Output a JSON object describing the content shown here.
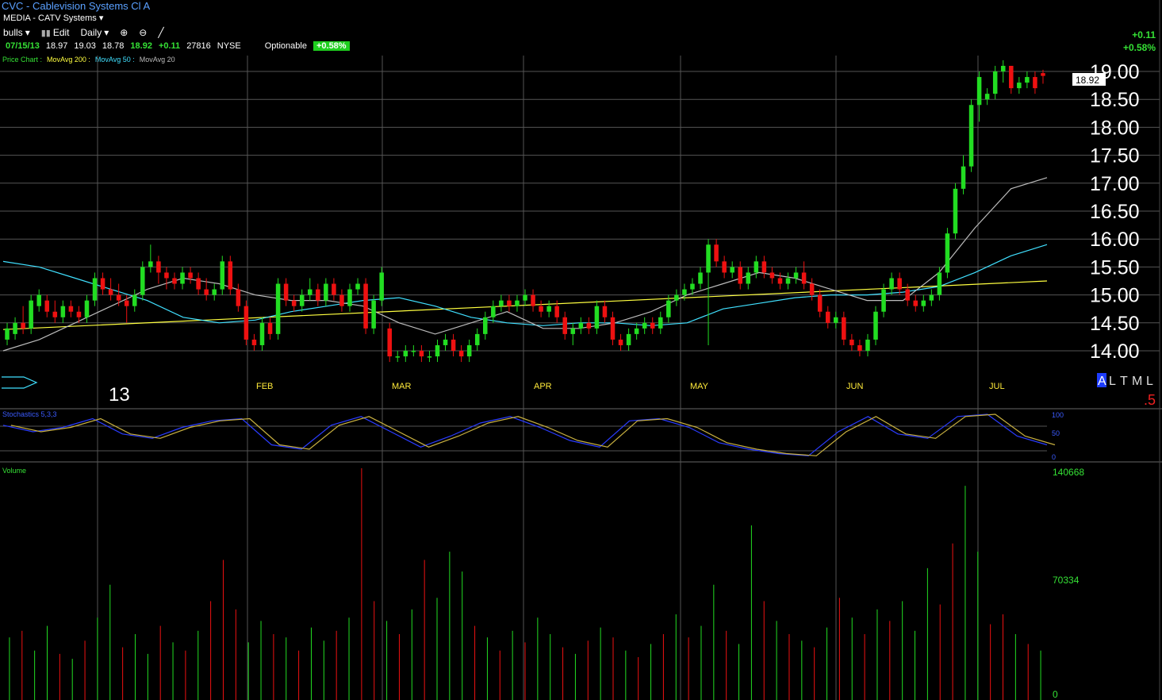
{
  "header": {
    "title": "CVC - Cablevision Systems Cl A",
    "industry": "MEDIA - CATV Systems"
  },
  "toolbar": {
    "watchlist": "bulls",
    "edit_label": "Edit",
    "period": "Daily"
  },
  "quote": {
    "date": "07/15/13",
    "open": "18.97",
    "high": "19.03",
    "low": "18.78",
    "last": "18.92",
    "change": "+0.11",
    "volume": "27816",
    "exchange": "NYSE",
    "optionable": "Optionable",
    "pct_badge": "+0.58%"
  },
  "right_summary": {
    "change": "+0.11",
    "pct": "+0.58%"
  },
  "legend": {
    "price_chart": "Price Chart :",
    "ma200": "MovAvg 200 :",
    "ma50": "MovAvg 50 :",
    "ma20": "MovAvg 20",
    "color_price": "#35e135",
    "color_ma200": "#ffff40",
    "color_ma50": "#40e0ff",
    "color_ma20": "#bbbbbb"
  },
  "year_label": "13",
  "scale_toggles": [
    "A",
    "L",
    "T",
    "M",
    "L"
  ],
  "red_marker": ".5",
  "stochastics_label": "Stochastics 5,3,3",
  "stochastics_ticks": [
    "100",
    "50",
    "0"
  ],
  "volume_label": "Volume",
  "volume_ticks": [
    "140668",
    "70334",
    "0"
  ],
  "price_flag": "18.92",
  "colors": {
    "up": "#22dd22",
    "down": "#ee1111",
    "grid": "#555555",
    "bg": "#000000"
  },
  "chart_data": {
    "type": "candlestick",
    "ylim": [
      13.7,
      19.2
    ],
    "y_ticks": [
      "19.00",
      "18.50",
      "18.00",
      "17.50",
      "17.00",
      "16.50",
      "16.00",
      "15.50",
      "15.00",
      "14.50",
      "14.00"
    ],
    "x_months": [
      "FEB",
      "MAR",
      "APR",
      "MAY",
      "JUN",
      "JUL"
    ],
    "candles": [
      {
        "o": 14.2,
        "h": 14.5,
        "l": 14.1,
        "c": 14.4
      },
      {
        "o": 14.3,
        "h": 14.6,
        "l": 14.2,
        "c": 14.5
      },
      {
        "o": 14.5,
        "h": 14.8,
        "l": 14.3,
        "c": 14.4
      },
      {
        "o": 14.4,
        "h": 15.0,
        "l": 14.3,
        "c": 14.9
      },
      {
        "o": 14.8,
        "h": 15.1,
        "l": 14.7,
        "c": 15.0
      },
      {
        "o": 14.9,
        "h": 15.0,
        "l": 14.6,
        "c": 14.7
      },
      {
        "o": 14.7,
        "h": 14.9,
        "l": 14.5,
        "c": 14.6
      },
      {
        "o": 14.6,
        "h": 14.9,
        "l": 14.5,
        "c": 14.8
      },
      {
        "o": 14.8,
        "h": 14.9,
        "l": 14.6,
        "c": 14.7
      },
      {
        "o": 14.7,
        "h": 14.8,
        "l": 14.5,
        "c": 14.6
      },
      {
        "o": 14.6,
        "h": 15.0,
        "l": 14.5,
        "c": 14.9
      },
      {
        "o": 14.9,
        "h": 15.4,
        "l": 14.8,
        "c": 15.3
      },
      {
        "o": 15.3,
        "h": 15.4,
        "l": 15.0,
        "c": 15.1
      },
      {
        "o": 15.1,
        "h": 15.3,
        "l": 14.9,
        "c": 15.0
      },
      {
        "o": 15.0,
        "h": 15.2,
        "l": 14.8,
        "c": 14.9
      },
      {
        "o": 14.9,
        "h": 15.0,
        "l": 14.5,
        "c": 14.8
      },
      {
        "o": 14.8,
        "h": 15.1,
        "l": 14.7,
        "c": 15.0
      },
      {
        "o": 15.0,
        "h": 15.6,
        "l": 14.9,
        "c": 15.5
      },
      {
        "o": 15.5,
        "h": 15.9,
        "l": 15.4,
        "c": 15.6
      },
      {
        "o": 15.6,
        "h": 15.7,
        "l": 15.2,
        "c": 15.4
      },
      {
        "o": 15.4,
        "h": 15.5,
        "l": 15.1,
        "c": 15.3
      },
      {
        "o": 15.3,
        "h": 15.4,
        "l": 15.1,
        "c": 15.2
      },
      {
        "o": 15.2,
        "h": 15.5,
        "l": 15.1,
        "c": 15.4
      },
      {
        "o": 15.4,
        "h": 15.5,
        "l": 15.2,
        "c": 15.3
      },
      {
        "o": 15.3,
        "h": 15.4,
        "l": 15.0,
        "c": 15.1
      },
      {
        "o": 15.1,
        "h": 15.3,
        "l": 14.9,
        "c": 15.0
      },
      {
        "o": 15.0,
        "h": 15.2,
        "l": 14.9,
        "c": 15.1
      },
      {
        "o": 15.1,
        "h": 15.7,
        "l": 15.0,
        "c": 15.6
      },
      {
        "o": 15.6,
        "h": 15.7,
        "l": 15.0,
        "c": 15.1
      },
      {
        "o": 15.1,
        "h": 15.2,
        "l": 14.7,
        "c": 14.8
      },
      {
        "o": 14.8,
        "h": 14.9,
        "l": 14.1,
        "c": 14.2
      },
      {
        "o": 14.2,
        "h": 14.3,
        "l": 14.0,
        "c": 14.1
      },
      {
        "o": 14.1,
        "h": 14.6,
        "l": 14.0,
        "c": 14.5
      },
      {
        "o": 14.5,
        "h": 14.6,
        "l": 14.2,
        "c": 14.3
      },
      {
        "o": 14.3,
        "h": 15.3,
        "l": 14.2,
        "c": 15.2
      },
      {
        "o": 15.2,
        "h": 15.3,
        "l": 14.8,
        "c": 14.9
      },
      {
        "o": 14.9,
        "h": 15.0,
        "l": 14.7,
        "c": 14.8
      },
      {
        "o": 14.8,
        "h": 15.1,
        "l": 14.7,
        "c": 15.0
      },
      {
        "o": 15.0,
        "h": 15.3,
        "l": 14.9,
        "c": 15.1
      },
      {
        "o": 15.1,
        "h": 15.2,
        "l": 14.8,
        "c": 14.9
      },
      {
        "o": 14.9,
        "h": 15.3,
        "l": 14.8,
        "c": 15.2
      },
      {
        "o": 15.2,
        "h": 15.3,
        "l": 14.9,
        "c": 15.0
      },
      {
        "o": 15.0,
        "h": 15.1,
        "l": 14.7,
        "c": 14.8
      },
      {
        "o": 14.8,
        "h": 15.2,
        "l": 14.7,
        "c": 15.1
      },
      {
        "o": 15.1,
        "h": 15.3,
        "l": 15.0,
        "c": 15.2
      },
      {
        "o": 15.2,
        "h": 15.3,
        "l": 14.3,
        "c": 14.4
      },
      {
        "o": 14.4,
        "h": 15.0,
        "l": 14.3,
        "c": 14.9
      },
      {
        "o": 14.9,
        "h": 15.5,
        "l": 14.8,
        "c": 15.4
      },
      {
        "o": 14.4,
        "h": 14.5,
        "l": 13.8,
        "c": 13.9
      },
      {
        "o": 13.9,
        "h": 14.0,
        "l": 13.8,
        "c": 13.9
      },
      {
        "o": 13.9,
        "h": 14.1,
        "l": 13.8,
        "c": 14.0
      },
      {
        "o": 14.0,
        "h": 14.1,
        "l": 13.9,
        "c": 14.0
      },
      {
        "o": 14.0,
        "h": 14.1,
        "l": 13.8,
        "c": 13.9
      },
      {
        "o": 13.9,
        "h": 14.0,
        "l": 13.8,
        "c": 13.9
      },
      {
        "o": 13.9,
        "h": 14.2,
        "l": 13.8,
        "c": 14.1
      },
      {
        "o": 14.1,
        "h": 14.3,
        "l": 14.0,
        "c": 14.2
      },
      {
        "o": 14.2,
        "h": 14.3,
        "l": 13.9,
        "c": 14.0
      },
      {
        "o": 14.0,
        "h": 14.1,
        "l": 13.8,
        "c": 13.9
      },
      {
        "o": 13.9,
        "h": 14.2,
        "l": 13.8,
        "c": 14.1
      },
      {
        "o": 14.1,
        "h": 14.4,
        "l": 14.0,
        "c": 14.3
      },
      {
        "o": 14.3,
        "h": 14.7,
        "l": 14.2,
        "c": 14.6
      },
      {
        "o": 14.6,
        "h": 14.9,
        "l": 14.5,
        "c": 14.8
      },
      {
        "o": 14.8,
        "h": 15.0,
        "l": 14.7,
        "c": 14.9
      },
      {
        "o": 14.9,
        "h": 15.0,
        "l": 14.7,
        "c": 14.8
      },
      {
        "o": 14.8,
        "h": 15.0,
        "l": 14.7,
        "c": 14.9
      },
      {
        "o": 14.9,
        "h": 15.1,
        "l": 14.8,
        "c": 15.0
      },
      {
        "o": 15.0,
        "h": 15.1,
        "l": 14.7,
        "c": 14.8
      },
      {
        "o": 14.8,
        "h": 14.9,
        "l": 14.6,
        "c": 14.7
      },
      {
        "o": 14.7,
        "h": 14.9,
        "l": 14.6,
        "c": 14.8
      },
      {
        "o": 14.8,
        "h": 14.9,
        "l": 14.5,
        "c": 14.6
      },
      {
        "o": 14.6,
        "h": 14.7,
        "l": 14.2,
        "c": 14.3
      },
      {
        "o": 14.3,
        "h": 14.5,
        "l": 14.1,
        "c": 14.4
      },
      {
        "o": 14.4,
        "h": 14.6,
        "l": 14.3,
        "c": 14.5
      },
      {
        "o": 14.5,
        "h": 14.6,
        "l": 14.3,
        "c": 14.4
      },
      {
        "o": 14.4,
        "h": 14.9,
        "l": 14.3,
        "c": 14.8
      },
      {
        "o": 14.8,
        "h": 14.9,
        "l": 14.5,
        "c": 14.6
      },
      {
        "o": 14.6,
        "h": 14.7,
        "l": 14.1,
        "c": 14.2
      },
      {
        "o": 14.2,
        "h": 14.3,
        "l": 14.0,
        "c": 14.1
      },
      {
        "o": 14.1,
        "h": 14.4,
        "l": 14.0,
        "c": 14.3
      },
      {
        "o": 14.3,
        "h": 14.5,
        "l": 14.2,
        "c": 14.4
      },
      {
        "o": 14.4,
        "h": 14.6,
        "l": 14.3,
        "c": 14.5
      },
      {
        "o": 14.5,
        "h": 14.6,
        "l": 14.3,
        "c": 14.4
      },
      {
        "o": 14.4,
        "h": 14.7,
        "l": 14.3,
        "c": 14.6
      },
      {
        "o": 14.6,
        "h": 15.0,
        "l": 14.5,
        "c": 14.9
      },
      {
        "o": 14.9,
        "h": 15.1,
        "l": 14.8,
        "c": 15.0
      },
      {
        "o": 15.0,
        "h": 15.2,
        "l": 14.9,
        "c": 15.1
      },
      {
        "o": 15.1,
        "h": 15.3,
        "l": 15.0,
        "c": 15.2
      },
      {
        "o": 15.2,
        "h": 15.5,
        "l": 15.1,
        "c": 15.4
      },
      {
        "o": 15.4,
        "h": 16.0,
        "l": 14.1,
        "c": 15.9
      },
      {
        "o": 15.9,
        "h": 16.0,
        "l": 15.5,
        "c": 15.6
      },
      {
        "o": 15.6,
        "h": 15.7,
        "l": 15.3,
        "c": 15.4
      },
      {
        "o": 15.4,
        "h": 15.6,
        "l": 15.3,
        "c": 15.5
      },
      {
        "o": 15.5,
        "h": 15.6,
        "l": 15.1,
        "c": 15.2
      },
      {
        "o": 15.2,
        "h": 15.5,
        "l": 15.1,
        "c": 15.4
      },
      {
        "o": 15.4,
        "h": 15.7,
        "l": 15.3,
        "c": 15.6
      },
      {
        "o": 15.6,
        "h": 15.7,
        "l": 15.3,
        "c": 15.4
      },
      {
        "o": 15.4,
        "h": 15.5,
        "l": 15.2,
        "c": 15.3
      },
      {
        "o": 15.3,
        "h": 15.4,
        "l": 15.1,
        "c": 15.2
      },
      {
        "o": 15.2,
        "h": 15.4,
        "l": 15.1,
        "c": 15.3
      },
      {
        "o": 15.3,
        "h": 15.5,
        "l": 15.2,
        "c": 15.4
      },
      {
        "o": 15.4,
        "h": 15.6,
        "l": 15.1,
        "c": 15.2
      },
      {
        "o": 15.2,
        "h": 15.3,
        "l": 14.9,
        "c": 15.0
      },
      {
        "o": 15.0,
        "h": 15.1,
        "l": 14.6,
        "c": 14.7
      },
      {
        "o": 14.7,
        "h": 14.8,
        "l": 14.4,
        "c": 14.5
      },
      {
        "o": 14.5,
        "h": 14.7,
        "l": 14.4,
        "c": 14.6
      },
      {
        "o": 14.6,
        "h": 14.7,
        "l": 14.1,
        "c": 14.2
      },
      {
        "o": 14.2,
        "h": 14.3,
        "l": 14.0,
        "c": 14.1
      },
      {
        "o": 14.1,
        "h": 14.2,
        "l": 13.9,
        "c": 14.0
      },
      {
        "o": 14.0,
        "h": 14.3,
        "l": 13.9,
        "c": 14.2
      },
      {
        "o": 14.2,
        "h": 14.8,
        "l": 14.1,
        "c": 14.7
      },
      {
        "o": 14.7,
        "h": 15.2,
        "l": 14.6,
        "c": 15.1
      },
      {
        "o": 15.1,
        "h": 15.4,
        "l": 15.0,
        "c": 15.3
      },
      {
        "o": 15.3,
        "h": 15.4,
        "l": 15.0,
        "c": 15.1
      },
      {
        "o": 15.1,
        "h": 15.2,
        "l": 14.8,
        "c": 14.9
      },
      {
        "o": 14.9,
        "h": 15.0,
        "l": 14.7,
        "c": 14.8
      },
      {
        "o": 14.8,
        "h": 15.0,
        "l": 14.7,
        "c": 14.9
      },
      {
        "o": 14.9,
        "h": 15.1,
        "l": 14.8,
        "c": 15.0
      },
      {
        "o": 15.0,
        "h": 15.5,
        "l": 14.9,
        "c": 15.4
      },
      {
        "o": 15.4,
        "h": 16.2,
        "l": 15.3,
        "c": 16.1
      },
      {
        "o": 16.1,
        "h": 17.0,
        "l": 16.0,
        "c": 16.9
      },
      {
        "o": 16.9,
        "h": 17.5,
        "l": 16.8,
        "c": 17.3
      },
      {
        "o": 17.3,
        "h": 18.5,
        "l": 17.2,
        "c": 18.4
      },
      {
        "o": 18.4,
        "h": 19.0,
        "l": 18.1,
        "c": 18.9
      },
      {
        "o": 18.5,
        "h": 18.7,
        "l": 18.4,
        "c": 18.6
      },
      {
        "o": 18.6,
        "h": 19.1,
        "l": 18.5,
        "c": 19.0
      },
      {
        "o": 19.0,
        "h": 19.2,
        "l": 18.8,
        "c": 19.1
      },
      {
        "o": 19.1,
        "h": 19.1,
        "l": 18.6,
        "c": 18.7
      },
      {
        "o": 18.7,
        "h": 18.9,
        "l": 18.6,
        "c": 18.8
      },
      {
        "o": 18.8,
        "h": 19.0,
        "l": 18.7,
        "c": 18.9
      },
      {
        "o": 18.9,
        "h": 19.0,
        "l": 18.6,
        "c": 18.7
      },
      {
        "o": 18.97,
        "h": 19.03,
        "l": 18.78,
        "c": 18.92
      }
    ],
    "ma200": {
      "start": 14.38,
      "end": 15.25
    },
    "ma50": [
      15.6,
      15.5,
      15.3,
      15.1,
      14.9,
      14.6,
      14.5,
      14.55,
      14.7,
      14.8,
      14.9,
      14.95,
      14.8,
      14.6,
      14.5,
      14.45,
      14.5,
      14.5,
      14.45,
      14.5,
      14.75,
      14.85,
      14.95,
      15.0,
      15.0,
      15.05,
      15.15,
      15.4,
      15.7,
      15.9
    ],
    "ma20": [
      14.0,
      14.2,
      14.5,
      14.8,
      15.1,
      15.3,
      15.2,
      15.0,
      14.9,
      14.9,
      14.8,
      14.5,
      14.3,
      14.5,
      14.7,
      14.4,
      14.4,
      14.5,
      14.7,
      15.0,
      15.2,
      15.4,
      15.3,
      15.1,
      14.9,
      14.9,
      15.4,
      16.2,
      16.9,
      17.1
    ],
    "stoch_k": [
      75,
      60,
      70,
      90,
      55,
      45,
      70,
      85,
      90,
      30,
      20,
      75,
      95,
      60,
      25,
      50,
      80,
      95,
      70,
      40,
      25,
      85,
      90,
      70,
      35,
      20,
      10,
      5,
      60,
      95,
      55,
      45,
      95,
      100,
      50,
      30
    ],
    "volume": [
      {
        "v": 38000,
        "up": true
      },
      {
        "v": 42000,
        "up": false
      },
      {
        "v": 30000,
        "up": true
      },
      {
        "v": 45000,
        "up": true
      },
      {
        "v": 28000,
        "up": false
      },
      {
        "v": 25000,
        "up": true
      },
      {
        "v": 36000,
        "up": false
      },
      {
        "v": 50000,
        "up": true
      },
      {
        "v": 70000,
        "up": true
      },
      {
        "v": 32000,
        "up": false
      },
      {
        "v": 40000,
        "up": true
      },
      {
        "v": 28000,
        "up": true
      },
      {
        "v": 45000,
        "up": false
      },
      {
        "v": 35000,
        "up": true
      },
      {
        "v": 30000,
        "up": false
      },
      {
        "v": 42000,
        "up": true
      },
      {
        "v": 60000,
        "up": false
      },
      {
        "v": 85000,
        "up": false
      },
      {
        "v": 55000,
        "up": false
      },
      {
        "v": 35000,
        "up": true
      },
      {
        "v": 48000,
        "up": true
      },
      {
        "v": 40000,
        "up": false
      },
      {
        "v": 38000,
        "up": true
      },
      {
        "v": 30000,
        "up": false
      },
      {
        "v": 44000,
        "up": true
      },
      {
        "v": 36000,
        "up": true
      },
      {
        "v": 42000,
        "up": false
      },
      {
        "v": 50000,
        "up": true
      },
      {
        "v": 140668,
        "up": false
      },
      {
        "v": 60000,
        "up": false
      },
      {
        "v": 48000,
        "up": true
      },
      {
        "v": 40000,
        "up": false
      },
      {
        "v": 55000,
        "up": true
      },
      {
        "v": 85000,
        "up": false
      },
      {
        "v": 62000,
        "up": true
      },
      {
        "v": 90000,
        "up": true
      },
      {
        "v": 78000,
        "up": true
      },
      {
        "v": 45000,
        "up": false
      },
      {
        "v": 38000,
        "up": true
      },
      {
        "v": 30000,
        "up": false
      },
      {
        "v": 42000,
        "up": true
      },
      {
        "v": 35000,
        "up": false
      },
      {
        "v": 50000,
        "up": true
      },
      {
        "v": 40000,
        "up": true
      },
      {
        "v": 32000,
        "up": false
      },
      {
        "v": 28000,
        "up": true
      },
      {
        "v": 36000,
        "up": false
      },
      {
        "v": 44000,
        "up": true
      },
      {
        "v": 38000,
        "up": false
      },
      {
        "v": 30000,
        "up": true
      },
      {
        "v": 26000,
        "up": false
      },
      {
        "v": 34000,
        "up": true
      },
      {
        "v": 40000,
        "up": false
      },
      {
        "v": 52000,
        "up": true
      },
      {
        "v": 38000,
        "up": false
      },
      {
        "v": 45000,
        "up": true
      },
      {
        "v": 70000,
        "up": true
      },
      {
        "v": 42000,
        "up": false
      },
      {
        "v": 34000,
        "up": true
      },
      {
        "v": 106000,
        "up": true
      },
      {
        "v": 60000,
        "up": false
      },
      {
        "v": 48000,
        "up": true
      },
      {
        "v": 40000,
        "up": false
      },
      {
        "v": 36000,
        "up": true
      },
      {
        "v": 32000,
        "up": false
      },
      {
        "v": 44000,
        "up": true
      },
      {
        "v": 62000,
        "up": false
      },
      {
        "v": 50000,
        "up": true
      },
      {
        "v": 40000,
        "up": false
      },
      {
        "v": 55000,
        "up": true
      },
      {
        "v": 48000,
        "up": false
      },
      {
        "v": 60000,
        "up": true
      },
      {
        "v": 42000,
        "up": true
      },
      {
        "v": 80000,
        "up": true
      },
      {
        "v": 58000,
        "up": false
      },
      {
        "v": 95000,
        "up": false
      },
      {
        "v": 130000,
        "up": true
      },
      {
        "v": 90000,
        "up": true
      },
      {
        "v": 46000,
        "up": false
      },
      {
        "v": 52000,
        "up": false
      },
      {
        "v": 40000,
        "up": true
      },
      {
        "v": 34000,
        "up": false
      },
      {
        "v": 30000,
        "up": true
      }
    ]
  }
}
